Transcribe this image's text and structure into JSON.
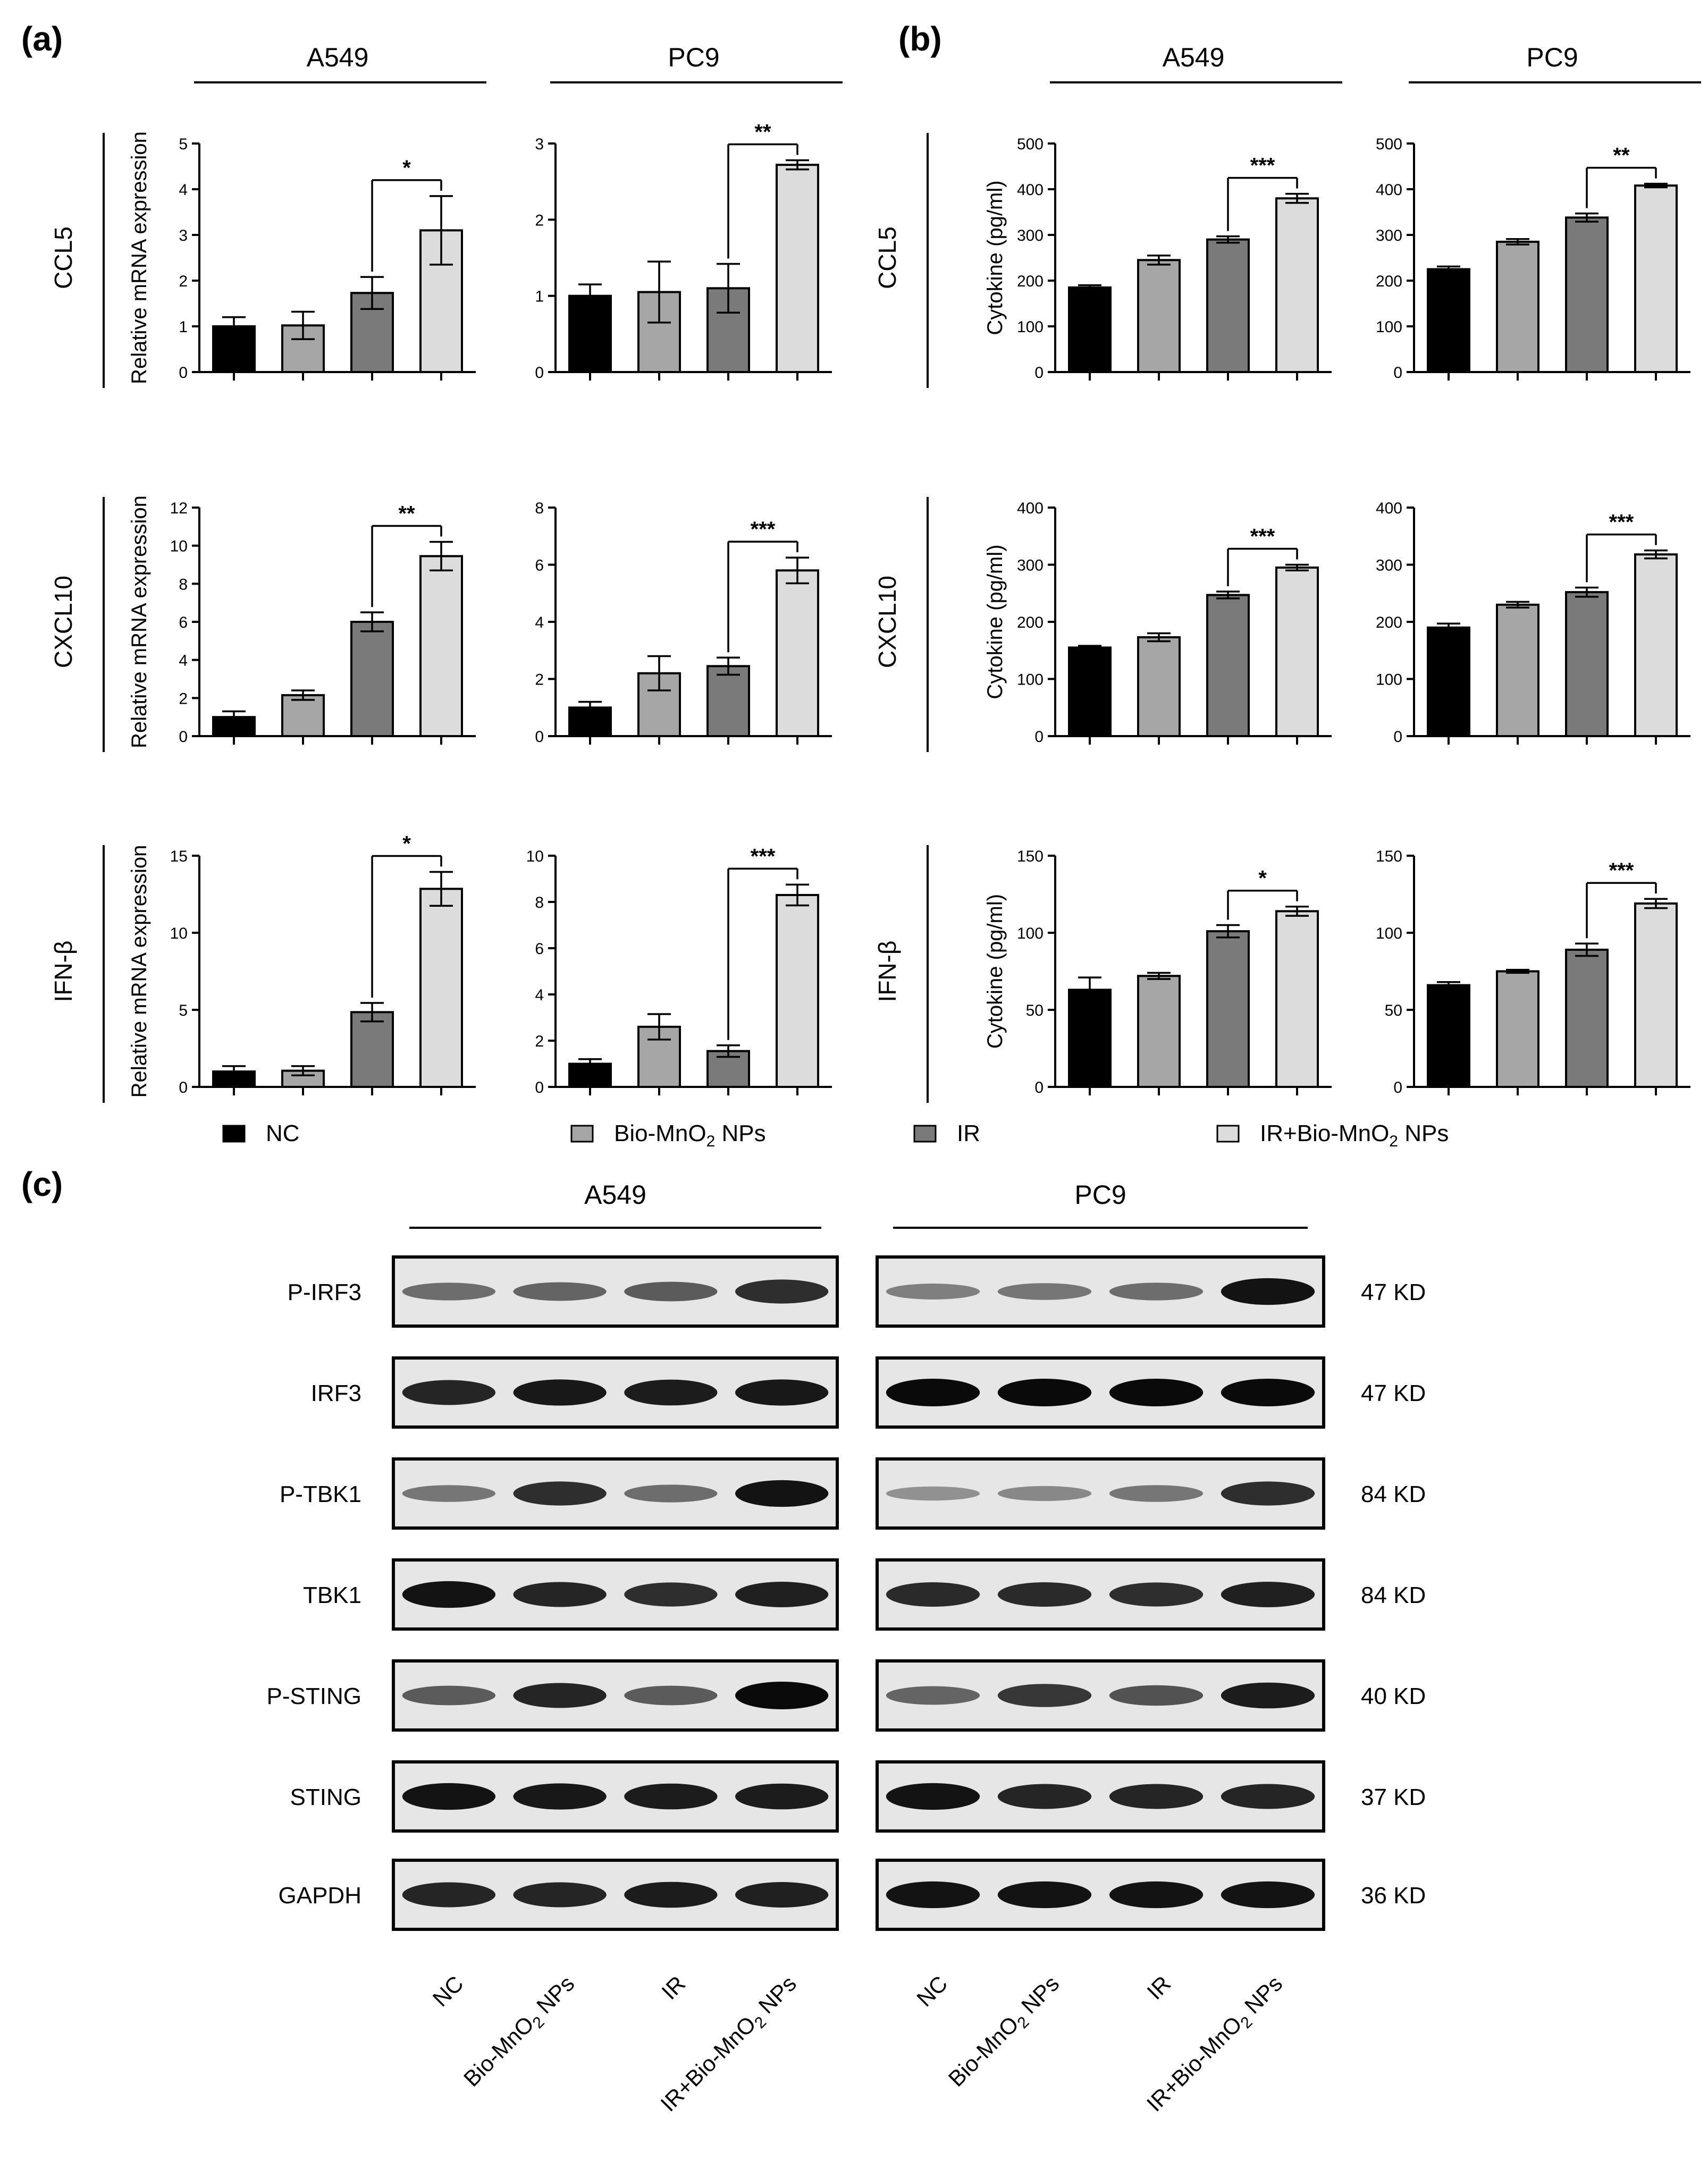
{
  "panel_labels": {
    "a": "(a)",
    "b": "(b)",
    "c": "(c)"
  },
  "cell_lines": [
    "A549",
    "PC9"
  ],
  "genes": [
    "CCL5",
    "CXCL10",
    "IFN-β"
  ],
  "ylabels": {
    "mrna": "Relative mRNA expression",
    "cytokine": "Cytokine (pg/ml)"
  },
  "groups": [
    "NC",
    "Bio-MnO₂ NPs",
    "IR",
    "IR+Bio-MnO₂ NPs"
  ],
  "group_colors": [
    "#000000",
    "#a6a6a6",
    "#7a7a7a",
    "#dcdcdc"
  ],
  "legend": [
    {
      "label": "NC",
      "sub": "",
      "tail": "",
      "color": "#000000"
    },
    {
      "label": "Bio-MnO",
      "sub": "2",
      "tail": " NPs",
      "color": "#a6a6a6"
    },
    {
      "label": "IR",
      "sub": "",
      "tail": "",
      "color": "#7a7a7a"
    },
    {
      "label": "IR+Bio-MnO",
      "sub": "2",
      "tail": " NPs",
      "color": "#dcdcdc"
    }
  ],
  "chart_data": [
    {
      "id": "a-A549-CCL5",
      "type": "bar",
      "panel": "a",
      "cell": "A549",
      "gene": "CCL5",
      "ylabel": "Relative mRNA expression",
      "categories": [
        "NC",
        "Bio-MnO₂ NPs",
        "IR",
        "IR+Bio-MnO₂ NPs"
      ],
      "values": [
        1.0,
        1.02,
        1.73,
        3.1
      ],
      "errors": [
        0.2,
        0.3,
        0.35,
        0.75
      ],
      "ylim": [
        0,
        5
      ],
      "ticks": [
        0,
        1,
        2,
        3,
        4,
        5
      ],
      "sig": "*",
      "sig_start": 2
    },
    {
      "id": "a-PC9-CCL5",
      "type": "bar",
      "panel": "a",
      "cell": "PC9",
      "gene": "CCL5",
      "ylabel": "",
      "categories": [
        "NC",
        "Bio-MnO₂ NPs",
        "IR",
        "IR+Bio-MnO₂ NPs"
      ],
      "values": [
        1.0,
        1.05,
        1.1,
        2.72
      ],
      "errors": [
        0.15,
        0.4,
        0.32,
        0.06
      ],
      "ylim": [
        0,
        3
      ],
      "ticks": [
        0,
        1,
        2,
        3
      ],
      "sig": "**",
      "sig_start": 2
    },
    {
      "id": "b-A549-CCL5",
      "type": "bar",
      "panel": "b",
      "cell": "A549",
      "gene": "CCL5",
      "ylabel": "Cytokine (pg/ml)",
      "categories": [
        "NC",
        "Bio-MnO₂ NPs",
        "IR",
        "IR+Bio-MnO₂ NPs"
      ],
      "values": [
        185,
        245,
        290,
        380
      ],
      "errors": [
        5,
        10,
        7,
        10
      ],
      "ylim": [
        0,
        500
      ],
      "ticks": [
        0,
        100,
        200,
        300,
        400,
        500
      ],
      "sig": "***",
      "sig_start": 2
    },
    {
      "id": "b-PC9-CCL5",
      "type": "bar",
      "panel": "b",
      "cell": "PC9",
      "gene": "CCL5",
      "ylabel": "",
      "categories": [
        "NC",
        "Bio-MnO₂ NPs",
        "IR",
        "IR+Bio-MnO₂ NPs"
      ],
      "values": [
        225,
        285,
        338,
        408
      ],
      "errors": [
        6,
        6,
        9,
        4
      ],
      "ylim": [
        0,
        500
      ],
      "ticks": [
        0,
        100,
        200,
        300,
        400,
        500
      ],
      "sig": "**",
      "sig_start": 2
    },
    {
      "id": "a-A549-CXCL10",
      "type": "bar",
      "panel": "a",
      "cell": "A549",
      "gene": "CXCL10",
      "ylabel": "Relative mRNA expression",
      "categories": [
        "NC",
        "Bio-MnO₂ NPs",
        "IR",
        "IR+Bio-MnO₂ NPs"
      ],
      "values": [
        1.0,
        2.15,
        6.0,
        9.45
      ],
      "errors": [
        0.3,
        0.25,
        0.5,
        0.75
      ],
      "ylim": [
        0,
        12
      ],
      "ticks": [
        0,
        2,
        4,
        6,
        8,
        10,
        12
      ],
      "sig": "**",
      "sig_start": 2
    },
    {
      "id": "a-PC9-CXCL10",
      "type": "bar",
      "panel": "a",
      "cell": "PC9",
      "gene": "CXCL10",
      "ylabel": "",
      "categories": [
        "NC",
        "Bio-MnO₂ NPs",
        "IR",
        "IR+Bio-MnO₂ NPs"
      ],
      "values": [
        1.0,
        2.2,
        2.45,
        5.8
      ],
      "errors": [
        0.2,
        0.6,
        0.3,
        0.45
      ],
      "ylim": [
        0,
        8
      ],
      "ticks": [
        0,
        2,
        4,
        6,
        8
      ],
      "sig": "***",
      "sig_start": 2
    },
    {
      "id": "b-A549-CXCL10",
      "type": "bar",
      "panel": "b",
      "cell": "A549",
      "gene": "CXCL10",
      "ylabel": "Cytokine (pg/ml)",
      "categories": [
        "NC",
        "Bio-MnO₂ NPs",
        "IR",
        "IR+Bio-MnO₂ NPs"
      ],
      "values": [
        155,
        173,
        247,
        295
      ],
      "errors": [
        3,
        7,
        6,
        5
      ],
      "ylim": [
        0,
        400
      ],
      "ticks": [
        0,
        100,
        200,
        300,
        400
      ],
      "sig": "***",
      "sig_start": 2
    },
    {
      "id": "b-PC9-CXCL10",
      "type": "bar",
      "panel": "b",
      "cell": "PC9",
      "gene": "CXCL10",
      "ylabel": "",
      "categories": [
        "NC",
        "Bio-MnO₂ NPs",
        "IR",
        "IR+Bio-MnO₂ NPs"
      ],
      "values": [
        190,
        230,
        252,
        318
      ],
      "errors": [
        7,
        5,
        8,
        7
      ],
      "ylim": [
        0,
        400
      ],
      "ticks": [
        0,
        100,
        200,
        300,
        400
      ],
      "sig": "***",
      "sig_start": 2
    },
    {
      "id": "a-A549-IFN",
      "type": "bar",
      "panel": "a",
      "cell": "A549",
      "gene": "IFN-β",
      "ylabel": "Relative mRNA expression",
      "categories": [
        "NC",
        "Bio-MnO₂ NPs",
        "IR",
        "IR+Bio-MnO₂ NPs"
      ],
      "values": [
        1.0,
        1.05,
        4.85,
        12.85
      ],
      "errors": [
        0.35,
        0.3,
        0.6,
        1.1
      ],
      "ylim": [
        0,
        15
      ],
      "ticks": [
        0,
        5,
        10,
        15
      ],
      "sig": "*",
      "sig_start": 2
    },
    {
      "id": "a-PC9-IFN",
      "type": "bar",
      "panel": "a",
      "cell": "PC9",
      "gene": "IFN-β",
      "ylabel": "",
      "categories": [
        "NC",
        "Bio-MnO₂ NPs",
        "IR",
        "IR+Bio-MnO₂ NPs"
      ],
      "values": [
        1.0,
        2.6,
        1.55,
        8.3
      ],
      "errors": [
        0.2,
        0.55,
        0.25,
        0.45
      ],
      "ylim": [
        0,
        10
      ],
      "ticks": [
        0,
        2,
        4,
        6,
        8,
        10
      ],
      "sig": "***",
      "sig_start": 2
    },
    {
      "id": "b-A549-IFN",
      "type": "bar",
      "panel": "b",
      "cell": "A549",
      "gene": "IFN-β",
      "ylabel": "Cytokine (pg/ml)",
      "categories": [
        "NC",
        "Bio-MnO₂ NPs",
        "IR",
        "IR+Bio-MnO₂ NPs"
      ],
      "values": [
        63,
        72,
        101,
        114
      ],
      "errors": [
        8,
        2,
        4,
        3
      ],
      "ylim": [
        0,
        150
      ],
      "ticks": [
        0,
        50,
        100,
        150
      ],
      "sig": "*",
      "sig_start": 2
    },
    {
      "id": "b-PC9-IFN",
      "type": "bar",
      "panel": "b",
      "cell": "PC9",
      "gene": "IFN-β",
      "ylabel": "",
      "categories": [
        "NC",
        "Bio-MnO₂ NPs",
        "IR",
        "IR+Bio-MnO₂ NPs"
      ],
      "values": [
        66,
        75,
        89,
        119
      ],
      "errors": [
        2,
        1,
        4,
        3
      ],
      "ylim": [
        0,
        150
      ],
      "ticks": [
        0,
        50,
        100,
        150
      ],
      "sig": "***",
      "sig_start": 2
    }
  ],
  "western_blot": {
    "rows": [
      {
        "protein": "P-IRF3",
        "kd": "47 KD",
        "a549": [
          0.45,
          0.5,
          0.55,
          0.8
        ],
        "pc9": [
          0.35,
          0.4,
          0.45,
          0.95
        ]
      },
      {
        "protein": "IRF3",
        "kd": "47 KD",
        "a549": [
          0.85,
          0.92,
          0.9,
          0.92
        ],
        "pc9": [
          1.0,
          1.0,
          1.0,
          1.0
        ]
      },
      {
        "protein": "P-TBK1",
        "kd": "84 KD",
        "a549": [
          0.4,
          0.8,
          0.45,
          0.95
        ],
        "pc9": [
          0.25,
          0.3,
          0.4,
          0.8
        ]
      },
      {
        "protein": "TBK1",
        "kd": "84 KD",
        "a549": [
          0.95,
          0.85,
          0.8,
          0.88
        ],
        "pc9": [
          0.82,
          0.82,
          0.8,
          0.88
        ]
      },
      {
        "protein": "P-STING",
        "kd": "40 KD",
        "a549": [
          0.55,
          0.85,
          0.55,
          1.0
        ],
        "pc9": [
          0.5,
          0.75,
          0.6,
          0.9
        ]
      },
      {
        "protein": "STING",
        "kd": "37 KD",
        "a549": [
          0.95,
          0.92,
          0.9,
          0.9
        ],
        "pc9": [
          0.95,
          0.85,
          0.85,
          0.85
        ]
      },
      {
        "protein": "GAPDH",
        "kd": "36 KD",
        "a549": [
          0.85,
          0.85,
          0.9,
          0.88
        ],
        "pc9": [
          0.95,
          0.95,
          0.95,
          0.95
        ]
      }
    ]
  }
}
